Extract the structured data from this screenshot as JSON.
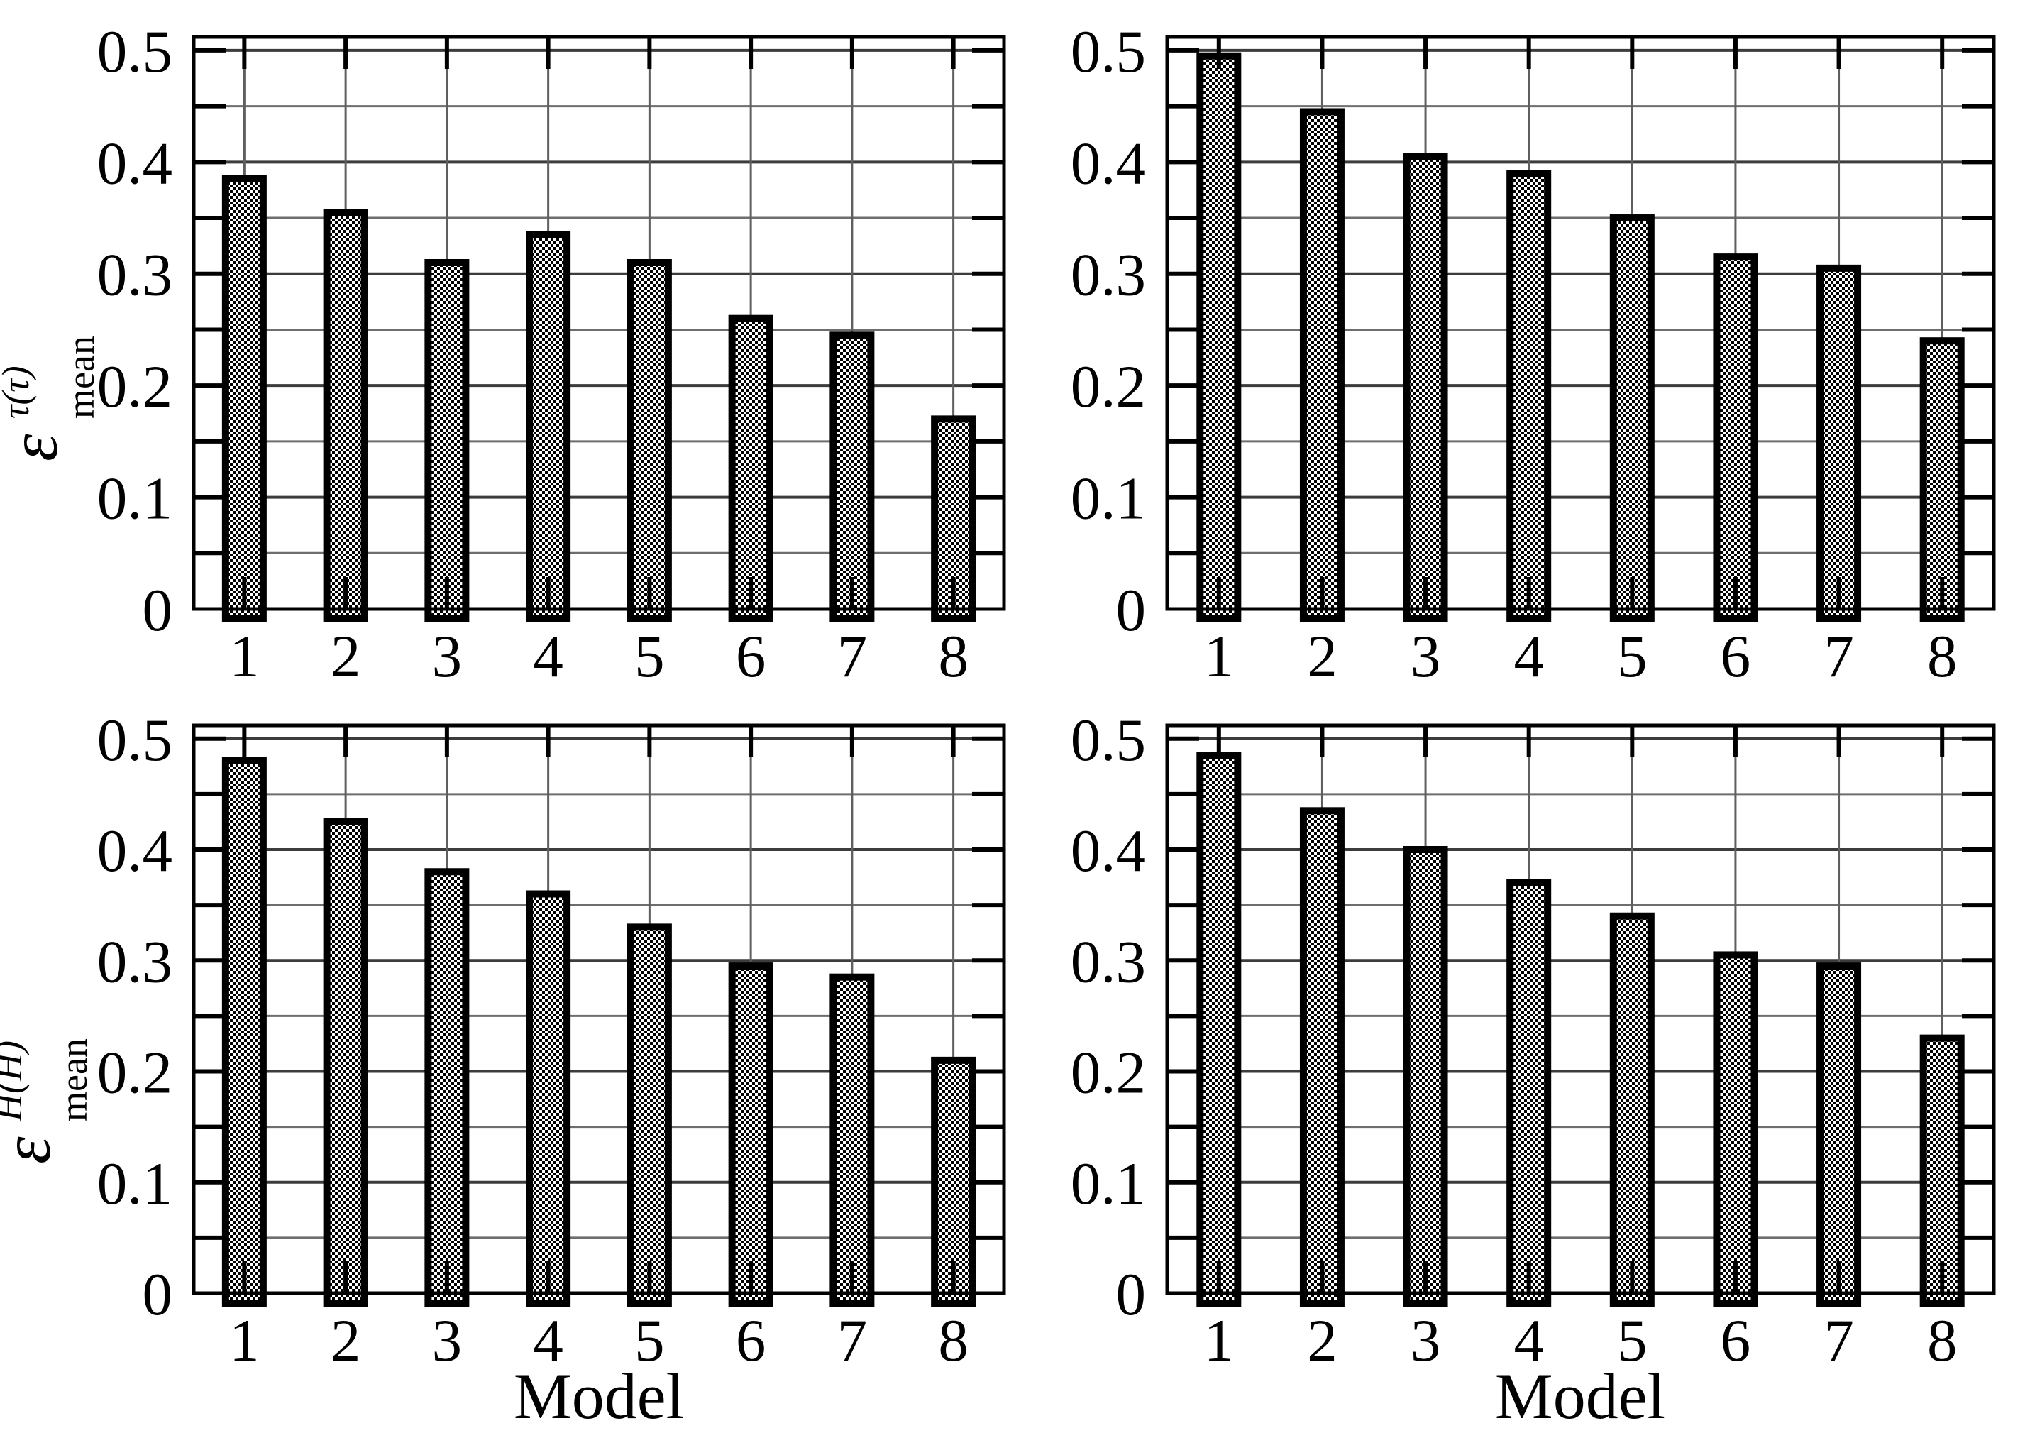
{
  "figure": {
    "background": "#ffffff",
    "rows": 2,
    "cols": 2
  },
  "colors": {
    "frame": "#000000",
    "grid_major": "#3c3c3c",
    "grid_minor": "#6e6e6e",
    "grid_vertical": "#5f5f5f",
    "bar_border": "#000000",
    "bar_fill_checker_dark": "#000000",
    "bar_fill_checker_light": "#ffffff",
    "text": "#000000"
  },
  "chart_data": [
    {
      "id": "top-left",
      "type": "bar",
      "categories": [
        "1",
        "2",
        "3",
        "4",
        "5",
        "6",
        "7",
        "8"
      ],
      "values": [
        0.385,
        0.355,
        0.31,
        0.335,
        0.31,
        0.26,
        0.245,
        0.17
      ],
      "title": "",
      "xlabel": "",
      "ylabel": "epsilon_mean^tau(tau)",
      "ylabel_base": "ε",
      "ylabel_sup": "τ(τ)",
      "ylabel_sub": "mean",
      "y_tick_labels": [
        "0",
        "0.1",
        "0.2",
        "0.3",
        "0.4",
        "0.5"
      ],
      "ylim": [
        0,
        0.512
      ],
      "minor_grid_step": 0.05,
      "grid": true,
      "legend": "none",
      "bar_pattern": "checkerboard"
    },
    {
      "id": "top-right",
      "type": "bar",
      "categories": [
        "1",
        "2",
        "3",
        "4",
        "5",
        "6",
        "7",
        "8"
      ],
      "values": [
        0.495,
        0.445,
        0.405,
        0.39,
        0.35,
        0.315,
        0.305,
        0.24
      ],
      "title": "",
      "xlabel": "",
      "ylabel": "",
      "ylabel_base": "",
      "ylabel_sup": "",
      "ylabel_sub": "",
      "y_tick_labels": [
        "0",
        "0.1",
        "0.2",
        "0.3",
        "0.4",
        "0.5"
      ],
      "ylim": [
        0,
        0.512
      ],
      "minor_grid_step": 0.05,
      "grid": true,
      "legend": "none",
      "bar_pattern": "checkerboard"
    },
    {
      "id": "bottom-left",
      "type": "bar",
      "categories": [
        "1",
        "2",
        "3",
        "4",
        "5",
        "6",
        "7",
        "8"
      ],
      "values": [
        0.48,
        0.425,
        0.38,
        0.36,
        0.33,
        0.295,
        0.285,
        0.21
      ],
      "title": "",
      "xlabel": "Model",
      "ylabel": "epsilon_mean^H(H)",
      "ylabel_base": "ε",
      "ylabel_sup": "H(H)",
      "ylabel_sub": "mean",
      "y_tick_labels": [
        "0",
        "0.1",
        "0.2",
        "0.3",
        "0.4",
        "0.5"
      ],
      "ylim": [
        0,
        0.512
      ],
      "minor_grid_step": 0.05,
      "grid": true,
      "legend": "none",
      "bar_pattern": "checkerboard"
    },
    {
      "id": "bottom-right",
      "type": "bar",
      "categories": [
        "1",
        "2",
        "3",
        "4",
        "5",
        "6",
        "7",
        "8"
      ],
      "values": [
        0.485,
        0.435,
        0.4,
        0.37,
        0.34,
        0.305,
        0.295,
        0.23
      ],
      "title": "",
      "xlabel": "Model",
      "ylabel": "",
      "ylabel_base": "",
      "ylabel_sup": "",
      "ylabel_sub": "",
      "y_tick_labels": [
        "0",
        "0.1",
        "0.2",
        "0.3",
        "0.4",
        "0.5"
      ],
      "ylim": [
        0,
        0.512
      ],
      "minor_grid_step": 0.05,
      "grid": true,
      "legend": "none",
      "bar_pattern": "checkerboard"
    }
  ]
}
